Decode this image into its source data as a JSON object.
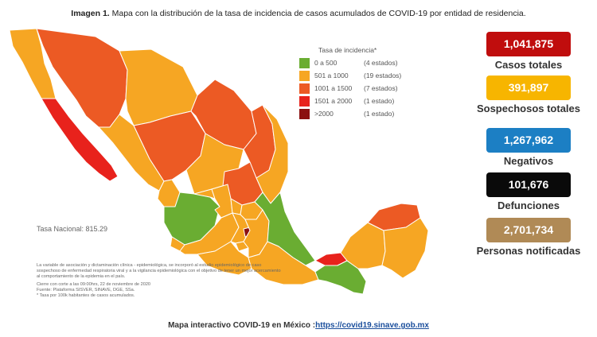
{
  "caption": {
    "prefix": "Imagen 1.",
    "text": " Mapa con la distribución de la tasa de incidencia de casos acumulados de COVID-19 por entidad de residencia."
  },
  "legend": {
    "title": "Tasa de incidencia*",
    "items": [
      {
        "range": "0 a 500",
        "count": "(4 estados)",
        "color": "#6aad32"
      },
      {
        "range": "501 a 1000",
        "count": "(19 estados)",
        "color": "#f6a623"
      },
      {
        "range": "1001 a 1500",
        "count": "(7 estados)",
        "color": "#ec5a24"
      },
      {
        "range": "1501 a 2000",
        "count": "(1 estado)",
        "color": "#e8221c"
      },
      {
        "range": ">2000",
        "count": "(1 estado)",
        "color": "#8b1010"
      }
    ]
  },
  "tasa_nacional": "Tasa Nacional: 815.29",
  "notes": {
    "p1": "La variable de asociación y dictaminación clínica - epidemiológica, se incorporó al estudio epidemiológico de caso sospechoso de enfermedad respiratoria viral y a la vigilancia epidemiológica con el objetivo de tener un mejor acercamiento al comportamiento de la epidemia en el país.",
    "p2": "Cierre con corte a las 09:00hrs, 22 de noviembre de 2020",
    "p3": "Fuente: Plataforma SISVER, SINAVE, DGE, SSa.",
    "p4": "* Tasa por 100k habitantes de casos acumulados."
  },
  "stats": [
    {
      "value": "1,041,875",
      "label": "Casos totales",
      "color": "#c00d0d"
    },
    {
      "value": "391,897",
      "label": "Sospechosos totales",
      "color": "#f7b500"
    },
    {
      "value": "1,267,962",
      "label": "Negativos",
      "color": "#1c7fc4"
    },
    {
      "value": "101,676",
      "label": "Defunciones",
      "color": "#0a0a0a"
    },
    {
      "value": "2,701,734",
      "label": "Personas notificadas",
      "color": "#b08a56"
    }
  ],
  "footer": {
    "text": "Mapa interactivo COVID-19 en México :",
    "link": "https://covid19.sinave.gob.mx"
  }
}
